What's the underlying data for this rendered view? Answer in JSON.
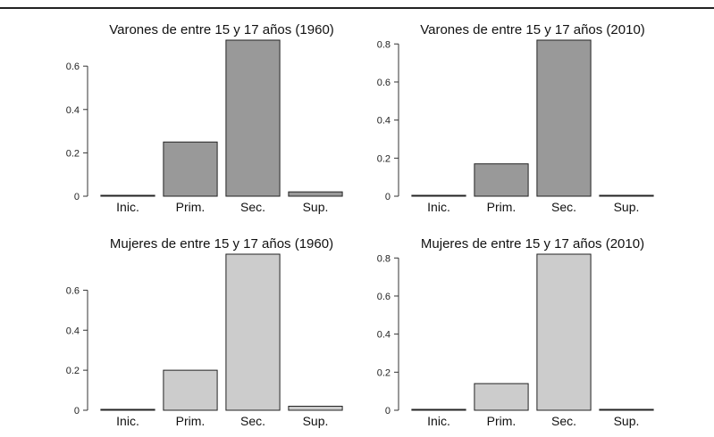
{
  "chart_data": [
    {
      "type": "bar",
      "title": "Varones de entre 15 y 17 años (1960)",
      "categories": [
        "Inic.",
        "Prim.",
        "Sec.",
        "Sup."
      ],
      "values": [
        0.0,
        0.25,
        0.72,
        0.02
      ],
      "ylim": [
        0,
        0.72
      ],
      "yticks": [
        0,
        0.2,
        0.4,
        0.6
      ],
      "ytick_labels": [
        "0",
        "0.2",
        "0.4",
        "0.6"
      ],
      "bar_color": "#999999",
      "xlabel": "",
      "ylabel": ""
    },
    {
      "type": "bar",
      "title": "Varones de entre 15 y 17 años (2010)",
      "categories": [
        "Inic.",
        "Prim.",
        "Sec.",
        "Sup."
      ],
      "values": [
        0.0,
        0.17,
        0.82,
        0.0
      ],
      "ylim": [
        0,
        0.82
      ],
      "yticks": [
        0,
        0.2,
        0.4,
        0.6,
        0.8
      ],
      "ytick_labels": [
        "0",
        "0.2",
        "0.4",
        "0.6",
        "0.8"
      ],
      "bar_color": "#999999",
      "xlabel": "",
      "ylabel": ""
    },
    {
      "type": "bar",
      "title": "Mujeres de entre 15 y 17 años (1960)",
      "categories": [
        "Inic.",
        "Prim.",
        "Sec.",
        "Sup."
      ],
      "values": [
        0.0,
        0.2,
        0.78,
        0.02
      ],
      "ylim": [
        0,
        0.78
      ],
      "yticks": [
        0,
        0.2,
        0.4,
        0.6
      ],
      "ytick_labels": [
        "0",
        "0.2",
        "0.4",
        "0.6"
      ],
      "bar_color": "#cccccc",
      "xlabel": "",
      "ylabel": ""
    },
    {
      "type": "bar",
      "title": "Mujeres de entre 15 y 17 años (2010)",
      "categories": [
        "Inic.",
        "Prim.",
        "Sec.",
        "Sup."
      ],
      "values": [
        0.0,
        0.14,
        0.82,
        0.0
      ],
      "ylim": [
        0,
        0.82
      ],
      "yticks": [
        0,
        0.2,
        0.4,
        0.6,
        0.8
      ],
      "ytick_labels": [
        "0",
        "0.2",
        "0.4",
        "0.6",
        "0.8"
      ],
      "bar_color": "#cccccc",
      "xlabel": "",
      "ylabel": ""
    }
  ]
}
